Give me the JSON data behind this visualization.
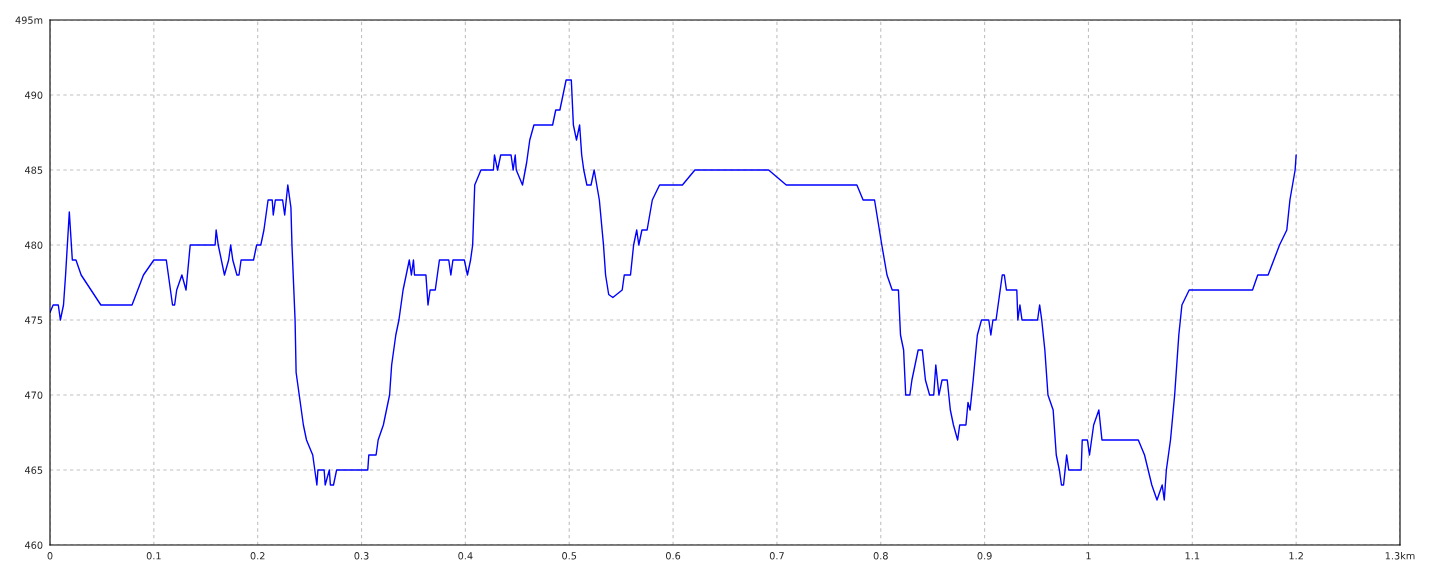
{
  "chart_data": {
    "type": "line",
    "x": [
      0,
      0.003,
      0.008,
      0.01,
      0.013,
      0.015,
      0.0186,
      0.0215,
      0.025,
      0.03,
      0.049,
      0.079,
      0.09,
      0.1,
      0.112,
      0.118,
      0.12,
      0.122,
      0.127,
      0.131,
      0.135,
      0.159,
      0.16,
      0.162,
      0.168,
      0.172,
      0.174,
      0.176,
      0.18,
      0.182,
      0.184,
      0.196,
      0.199,
      0.203,
      0.206,
      0.21,
      0.214,
      0.215,
      0.217,
      0.224,
      0.226,
      0.229,
      0.232,
      0.233,
      0.236,
      0.237,
      0.24,
      0.244,
      0.247,
      0.253,
      0.257,
      0.258,
      0.264,
      0.265,
      0.269,
      0.27,
      0.273,
      0.276,
      0.306,
      0.307,
      0.314,
      0.316,
      0.321,
      0.327,
      0.329,
      0.333,
      0.336,
      0.34,
      0.343,
      0.346,
      0.348,
      0.35,
      0.351,
      0.362,
      0.364,
      0.366,
      0.371,
      0.373,
      0.375,
      0.384,
      0.386,
      0.388,
      0.399,
      0.402,
      0.405,
      0.407,
      0.409,
      0.415,
      0.427,
      0.428,
      0.431,
      0.434,
      0.444,
      0.446,
      0.448,
      0.449,
      0.455,
      0.459,
      0.462,
      0.466,
      0.484,
      0.487,
      0.491,
      0.494,
      0.497,
      0.502,
      0.504,
      0.507,
      0.51,
      0.512,
      0.514,
      0.517,
      0.521,
      0.524,
      0.529,
      0.533,
      0.535,
      0.538,
      0.542,
      0.551,
      0.553,
      0.559,
      0.562,
      0.565,
      0.567,
      0.57,
      0.575,
      0.58,
      0.587,
      0.609,
      0.621,
      0.692,
      0.709,
      0.777,
      0.783,
      0.794,
      0.801,
      0.806,
      0.811,
      0.817,
      0.819,
      0.822,
      0.824,
      0.828,
      0.83,
      0.836,
      0.84,
      0.843,
      0.847,
      0.851,
      0.853,
      0.856,
      0.859,
      0.864,
      0.867,
      0.87,
      0.874,
      0.876,
      0.882,
      0.884,
      0.886,
      0.889,
      0.893,
      0.897,
      0.904,
      0.906,
      0.908,
      0.911,
      0.915,
      0.917,
      0.919,
      0.921,
      0.931,
      0.932,
      0.934,
      0.936,
      0.951,
      0.953,
      0.955,
      0.958,
      0.961,
      0.966,
      0.969,
      0.972,
      0.974,
      0.976,
      0.979,
      0.981,
      0.993,
      0.994,
      0.999,
      1.001,
      1.005,
      1.01,
      1.013,
      1.048,
      1.054,
      1.061,
      1.066,
      1.071,
      1.073,
      1.075,
      1.079,
      1.083,
      1.087,
      1.09,
      1.097,
      1.158,
      1.163,
      1.173,
      1.184,
      1.191,
      1.194,
      1.199,
      1.2
    ],
    "series": [
      {
        "color": "#0000ff",
        "values": [
          475.5,
          476,
          476,
          475,
          476,
          478,
          482.2,
          479,
          479,
          478,
          476,
          476,
          478,
          479,
          479,
          476,
          476,
          477,
          478,
          477,
          480,
          480,
          481,
          480,
          478,
          479,
          480,
          479,
          478,
          478,
          479,
          479,
          480,
          480,
          481,
          483,
          483,
          482,
          483,
          483,
          482,
          484,
          482.5,
          480,
          475,
          471.5,
          470,
          468,
          467,
          466,
          464,
          465,
          465,
          464,
          465,
          464,
          464,
          465,
          465,
          466,
          466,
          467,
          468,
          470,
          472,
          474,
          475,
          477,
          478,
          479,
          478,
          479,
          478,
          478,
          476,
          477,
          477,
          478,
          479,
          479,
          478,
          479,
          479,
          478,
          479,
          480,
          484,
          485,
          485,
          486,
          485,
          486,
          486,
          485,
          486,
          485,
          484,
          485.5,
          487,
          488,
          488,
          489,
          489,
          490,
          491,
          491,
          488,
          487,
          488,
          486,
          485,
          484,
          484,
          485,
          483,
          480,
          478,
          476.7,
          476.5,
          477,
          478,
          478,
          480,
          481,
          480,
          481,
          481,
          483,
          484,
          484,
          485,
          485,
          484,
          484,
          483,
          483,
          480,
          478,
          477,
          477,
          474,
          473,
          470,
          470,
          471,
          473,
          473,
          471,
          470,
          470,
          472,
          470,
          471,
          471,
          469,
          468,
          467,
          468,
          468,
          469.5,
          469,
          471,
          474,
          475,
          475,
          474,
          475,
          475,
          477,
          478,
          478,
          477,
          477,
          475,
          476,
          475,
          475,
          476,
          475,
          473,
          470,
          469,
          466,
          465,
          464,
          464,
          466,
          465,
          465,
          467,
          467,
          466,
          468,
          469,
          467,
          467,
          466,
          464,
          463,
          464,
          463,
          465,
          467,
          470,
          474,
          476,
          477,
          477,
          478,
          478,
          480,
          481,
          483,
          485,
          486
        ]
      }
    ],
    "xlim": [
      0,
      1.3
    ],
    "ylim": [
      460,
      495
    ],
    "xticks": [
      0,
      0.1,
      0.2,
      0.3,
      0.4,
      0.5,
      0.6,
      0.7,
      0.8,
      0.9,
      1,
      1.1,
      1.2,
      {
        "value": 1.3,
        "label": "1.3km"
      }
    ],
    "yticks": [
      460,
      465,
      470,
      475,
      480,
      485,
      490,
      {
        "value": 495,
        "label": "495m"
      }
    ],
    "grid": true,
    "line_style": "solid"
  }
}
